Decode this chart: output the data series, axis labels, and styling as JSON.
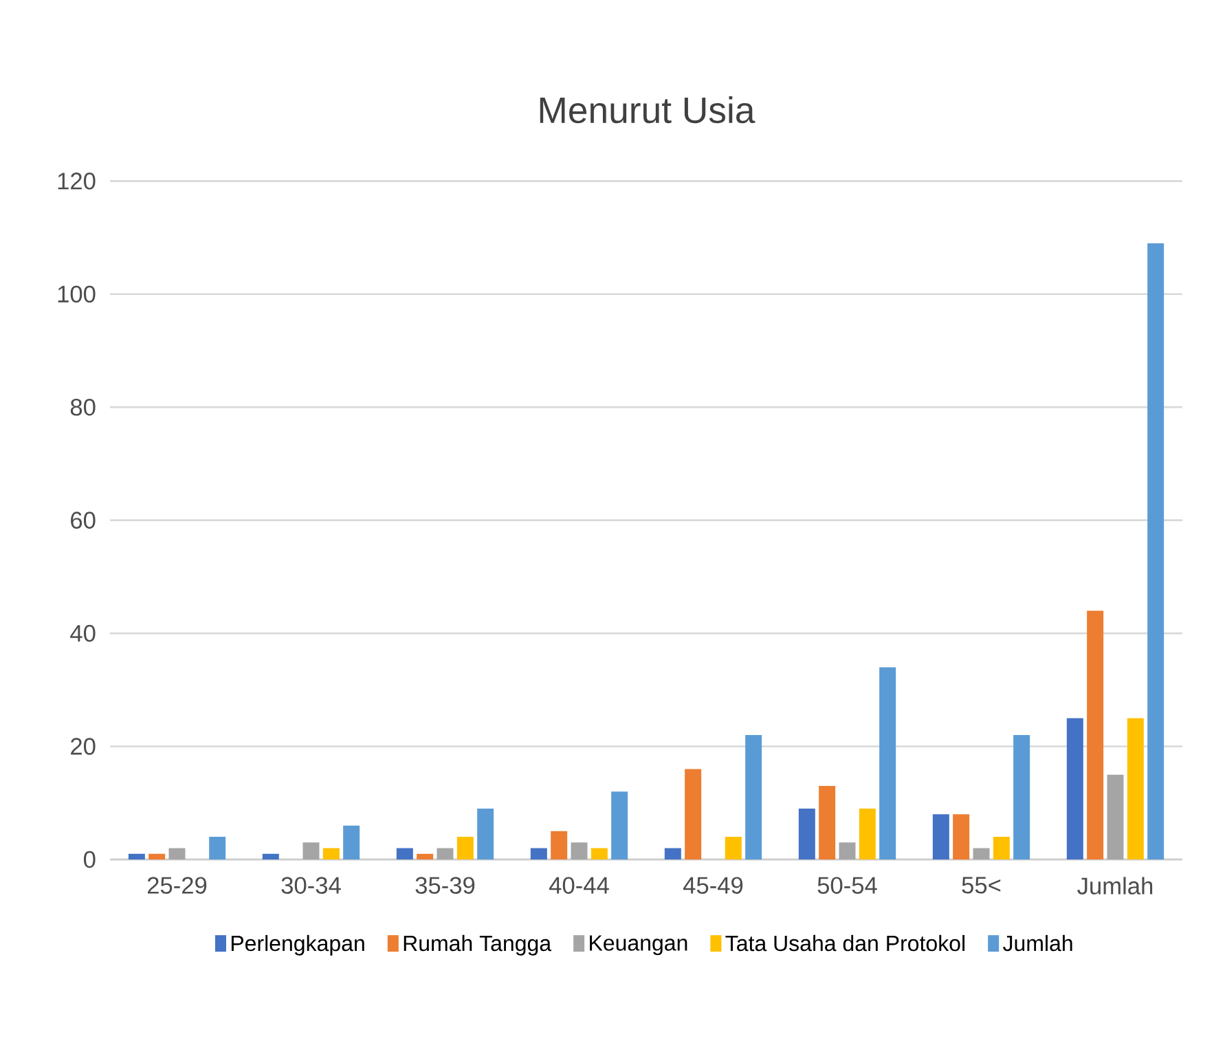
{
  "chart_data": {
    "type": "bar",
    "title": "Menurut Usia",
    "categories": [
      "25-29",
      "30-34",
      "35-39",
      "40-44",
      "45-49",
      "50-54",
      "55<",
      "Jumlah"
    ],
    "series": [
      {
        "name": "Perlengkapan",
        "color": "#4472c4",
        "values": [
          1,
          1,
          2,
          2,
          2,
          9,
          8,
          25
        ]
      },
      {
        "name": "Rumah Tangga",
        "color": "#ed7d31",
        "values": [
          1,
          0,
          1,
          5,
          16,
          13,
          8,
          44
        ]
      },
      {
        "name": "Keuangan",
        "color": "#a5a5a5",
        "values": [
          2,
          3,
          2,
          3,
          0,
          3,
          2,
          15
        ]
      },
      {
        "name": "Tata Usaha  dan Protokol",
        "color": "#ffc000",
        "values": [
          0,
          2,
          4,
          2,
          4,
          9,
          4,
          25
        ]
      },
      {
        "name": "Jumlah",
        "color": "#5b9bd5",
        "values": [
          4,
          6,
          9,
          12,
          22,
          34,
          22,
          109
        ]
      }
    ],
    "ylim": [
      0,
      120
    ],
    "yticks": [
      0,
      20,
      40,
      60,
      80,
      100,
      120
    ],
    "grid": "y",
    "legend": "bottom"
  }
}
